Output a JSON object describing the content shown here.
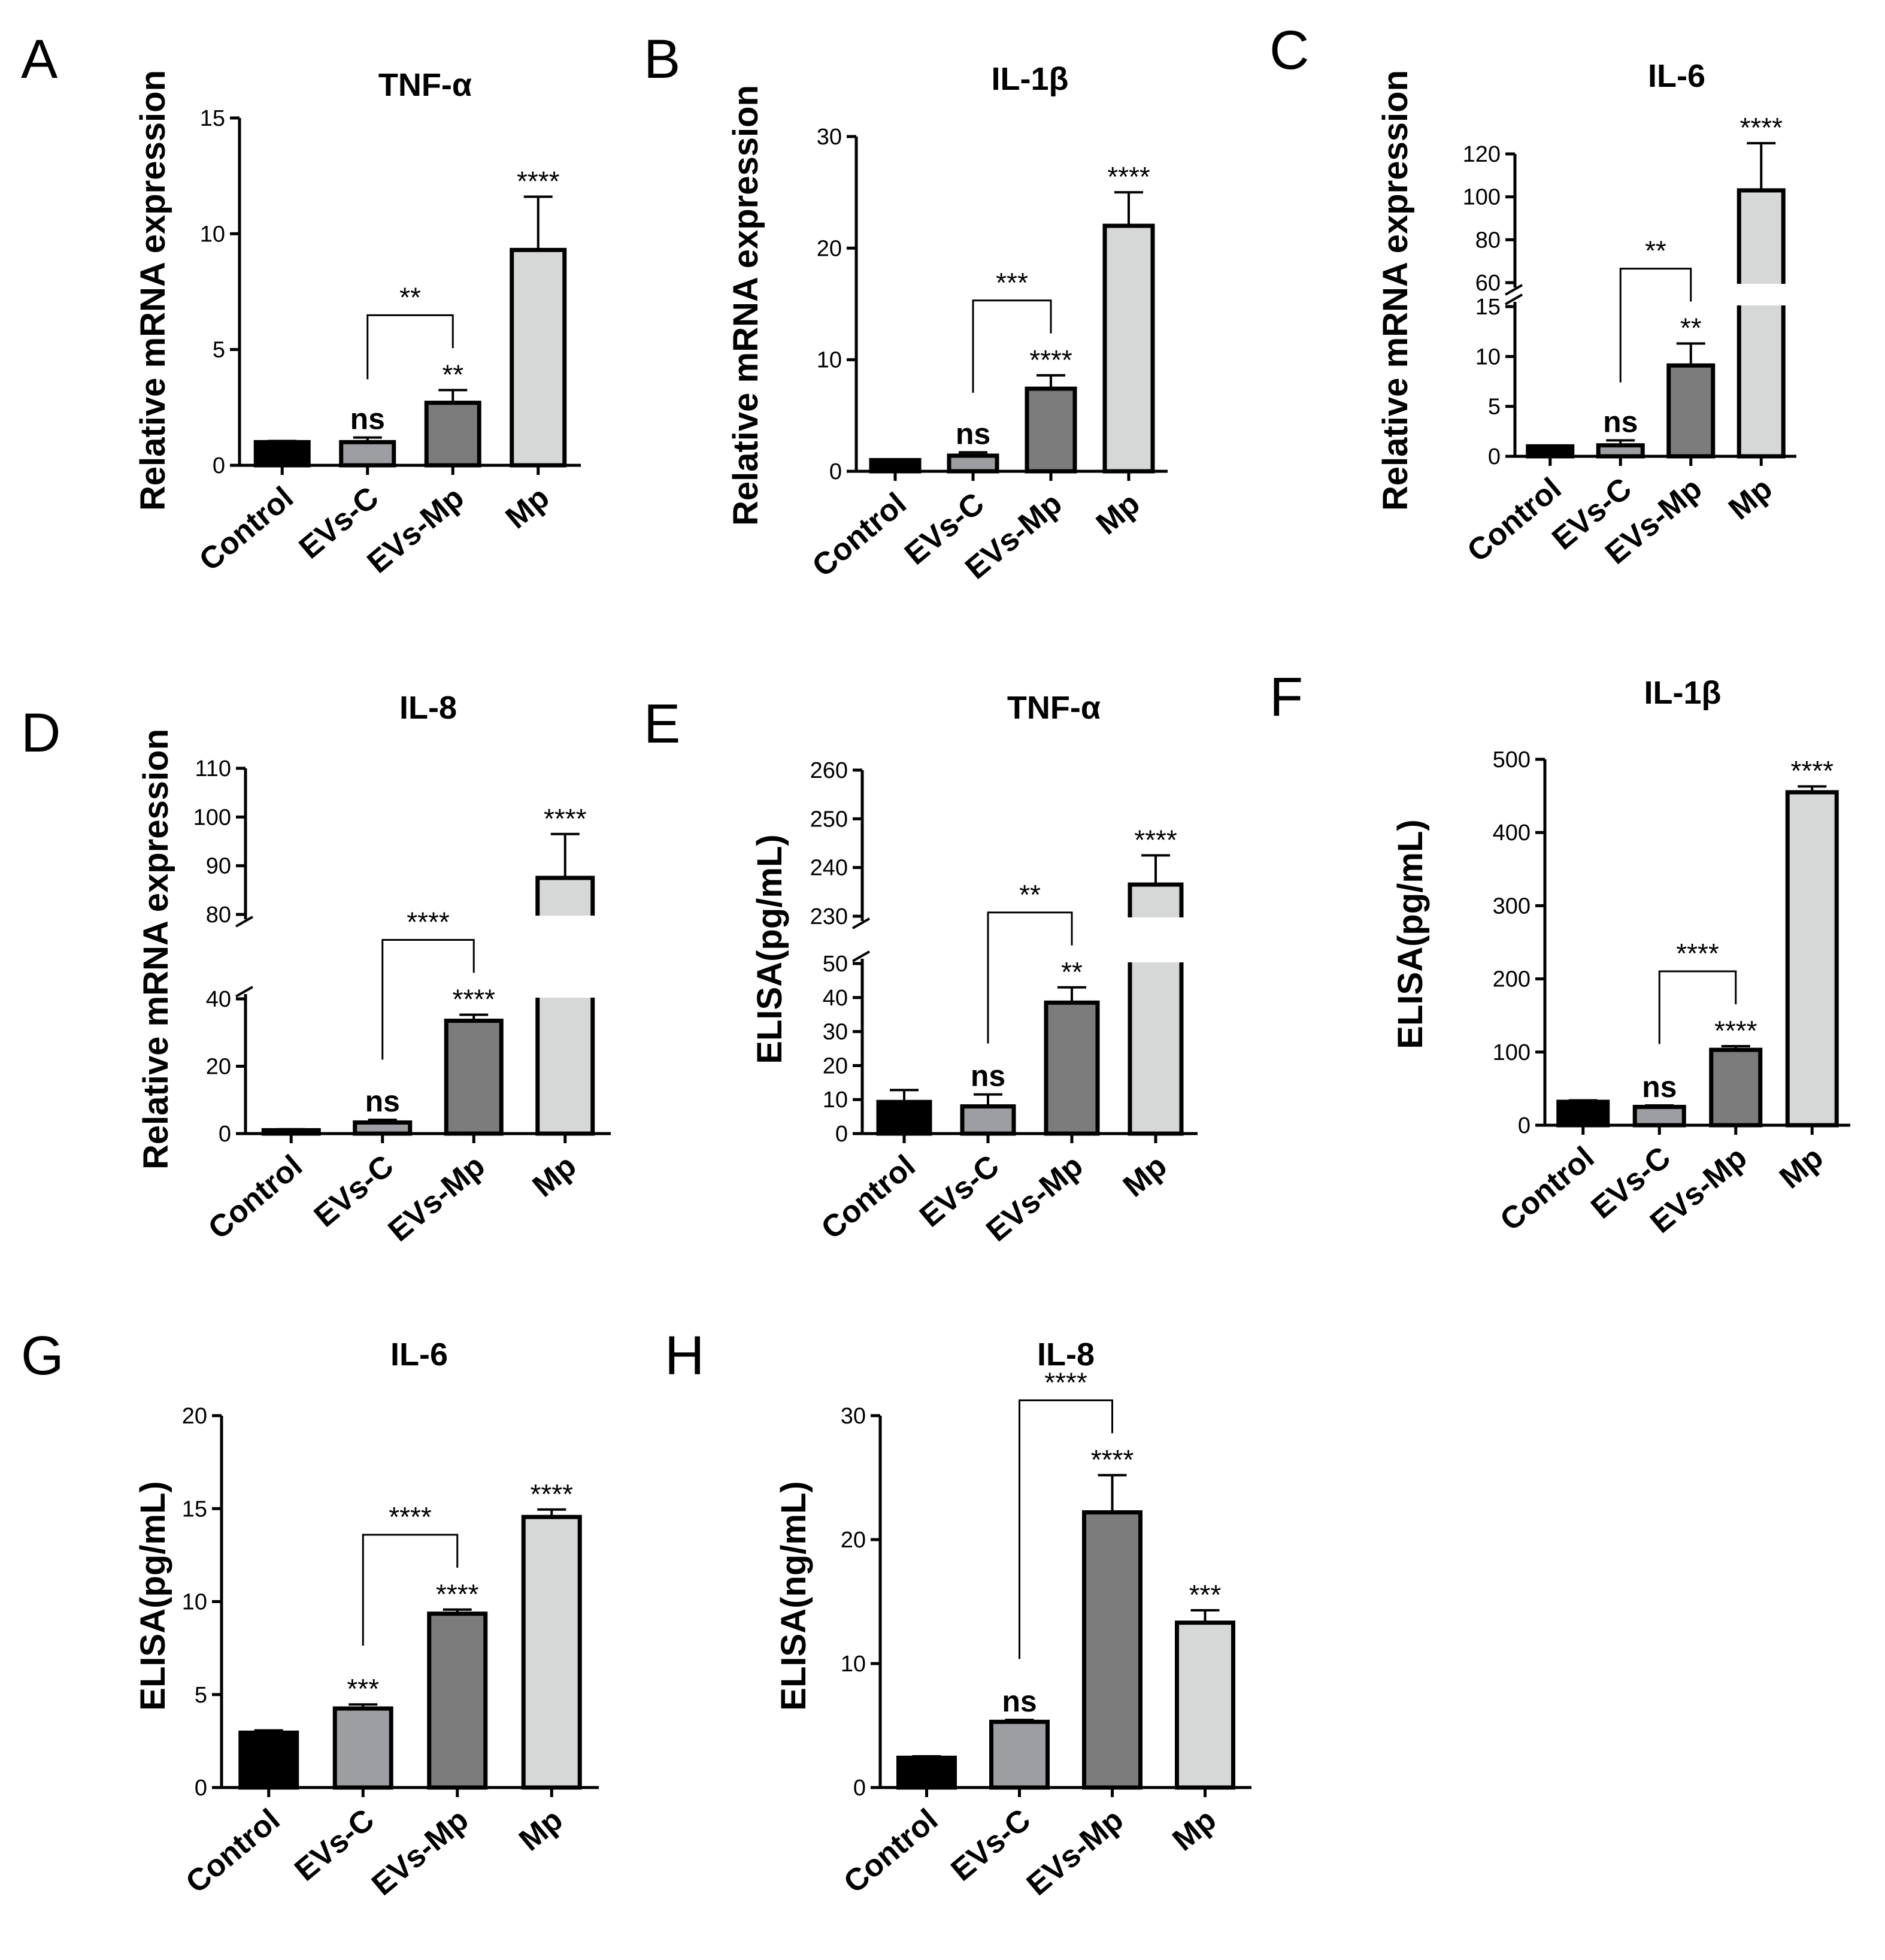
{
  "figure": {
    "colors": {
      "Control": "#000000",
      "EVs-C": "#9c9ea1",
      "EVs-Mp": "#7c7c7c",
      "Mp": "#d6d8d8",
      "axis": "#000000"
    },
    "categories": [
      "Control",
      "EVs-C",
      "EVs-Mp",
      "Mp"
    ]
  },
  "chart_data": [
    {
      "panel": "A",
      "type": "bar",
      "title": "TNF-α",
      "ylabel": "Relative mRNA expression",
      "categories": [
        "Control",
        "EVs-C",
        "EVs-Mp",
        "Mp"
      ],
      "values": [
        1.0,
        1.0,
        2.7,
        9.3
      ],
      "errors": [
        0.05,
        0.2,
        0.55,
        2.3
      ],
      "significance": [
        "",
        "ns",
        "**",
        "****"
      ],
      "comparison": {
        "from": "EVs-C",
        "to": "EVs-Mp",
        "label": "**"
      },
      "ylim": [
        0,
        15
      ],
      "yticks": [
        0,
        5,
        10,
        15
      ],
      "axis_break": null
    },
    {
      "panel": "B",
      "type": "bar",
      "title": "IL-1β",
      "ylabel": "Relative mRNA expression",
      "categories": [
        "Control",
        "EVs-C",
        "EVs-Mp",
        "Mp"
      ],
      "values": [
        1.0,
        1.4,
        7.4,
        22.0
      ],
      "errors": [
        0.05,
        0.3,
        1.2,
        3.0
      ],
      "significance": [
        "",
        "ns",
        "****",
        "****"
      ],
      "comparison": {
        "from": "EVs-C",
        "to": "EVs-Mp",
        "label": "***"
      },
      "ylim": [
        0,
        30
      ],
      "yticks": [
        0,
        10,
        20,
        30
      ],
      "axis_break": null
    },
    {
      "panel": "C",
      "type": "bar",
      "title": "IL-6",
      "ylabel": "Relative mRNA expression",
      "categories": [
        "Control",
        "EVs-C",
        "EVs-Mp",
        "Mp"
      ],
      "values": [
        1.0,
        1.1,
        9.1,
        103.0
      ],
      "errors": [
        0.05,
        0.5,
        2.2,
        22.0
      ],
      "significance": [
        "",
        "ns",
        "**",
        "****"
      ],
      "comparison": {
        "from": "EVs-C",
        "to": "EVs-Mp",
        "label": "**"
      },
      "ylim": [
        0,
        130
      ],
      "yticks": [
        0,
        5,
        10,
        15,
        60,
        80,
        100,
        120
      ],
      "axis_break": [
        15,
        60
      ]
    },
    {
      "panel": "D",
      "type": "bar",
      "title": "IL-8",
      "ylabel": "Relative mRNA expression",
      "categories": [
        "Control",
        "EVs-C",
        "EVs-Mp",
        "Mp"
      ],
      "values": [
        1.0,
        3.3,
        33.5,
        87.5
      ],
      "errors": [
        0.3,
        0.8,
        1.8,
        9.0
      ],
      "significance": [
        "",
        "ns",
        "****",
        "****"
      ],
      "comparison": {
        "from": "EVs-C",
        "to": "EVs-Mp",
        "label": "****"
      },
      "ylim": [
        0,
        110
      ],
      "yticks": [
        0,
        20,
        40,
        80,
        90,
        100,
        110
      ],
      "axis_break": [
        50,
        75
      ]
    },
    {
      "panel": "E",
      "type": "bar",
      "title": "TNF-α",
      "ylabel": "ELISA(pg/mL)",
      "categories": [
        "Control",
        "EVs-C",
        "EVs-Mp",
        "Mp"
      ],
      "values": [
        9.3,
        8.0,
        38.5,
        236.5
      ],
      "errors": [
        3.5,
        3.5,
        4.5,
        6.0
      ],
      "significance": [
        "",
        "ns",
        "**",
        "****"
      ],
      "comparison": {
        "from": "EVs-C",
        "to": "EVs-Mp",
        "label": "**"
      },
      "ylim": [
        0,
        260
      ],
      "yticks": [
        0,
        10,
        20,
        30,
        40,
        50,
        230,
        240,
        250,
        260
      ],
      "axis_break": [
        50,
        230
      ]
    },
    {
      "panel": "F",
      "type": "bar",
      "title": "IL-1β",
      "ylabel": "ELISA(pg/mL)",
      "categories": [
        "Control",
        "EVs-C",
        "EVs-Mp",
        "Mp"
      ],
      "values": [
        32.0,
        25.0,
        103.0,
        455.0
      ],
      "errors": [
        2.0,
        2.0,
        5.0,
        8.0
      ],
      "significance": [
        "",
        "ns",
        "****",
        "****"
      ],
      "comparison": {
        "from": "EVs-C",
        "to": "EVs-Mp",
        "label": "****"
      },
      "ylim": [
        0,
        500
      ],
      "yticks": [
        0,
        100,
        200,
        300,
        400,
        500
      ],
      "axis_break": null
    },
    {
      "panel": "G",
      "type": "bar",
      "title": "IL-6",
      "ylabel": "ELISA(pg/mL)",
      "categories": [
        "Control",
        "EVs-C",
        "EVs-Mp",
        "Mp"
      ],
      "values": [
        2.95,
        4.25,
        9.35,
        14.55
      ],
      "errors": [
        0.12,
        0.22,
        0.22,
        0.4
      ],
      "significance": [
        "",
        "***",
        "****",
        "****"
      ],
      "comparison": {
        "from": "EVs-C",
        "to": "EVs-Mp",
        "label": "****"
      },
      "ylim": [
        0,
        20
      ],
      "yticks": [
        0,
        5,
        10,
        15,
        20
      ],
      "axis_break": null
    },
    {
      "panel": "H",
      "type": "bar",
      "title": "IL-8",
      "ylabel": "ELISA(ng/mL)",
      "categories": [
        "Control",
        "EVs-C",
        "EVs-Mp",
        "Mp"
      ],
      "values": [
        2.4,
        5.3,
        22.2,
        13.3
      ],
      "errors": [
        0.12,
        0.15,
        3.0,
        1.0
      ],
      "significance": [
        "",
        "ns",
        "****",
        "***"
      ],
      "comparison": {
        "from": "EVs-C",
        "to": "EVs-Mp",
        "label": "****"
      },
      "ylim": [
        0,
        30
      ],
      "yticks": [
        0,
        10,
        20,
        30
      ],
      "axis_break": null
    }
  ]
}
